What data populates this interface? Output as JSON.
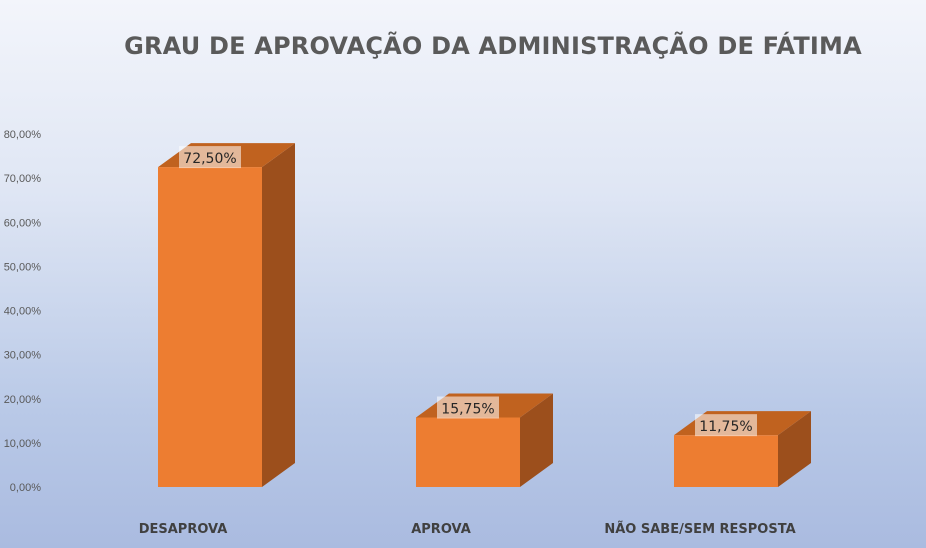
{
  "chart_data": {
    "type": "bar",
    "title": "GRAU DE APROVAÇÃO DA ADMINISTRAÇÃO DE FÁTIMA",
    "categories": [
      "DESAPROVA",
      "APROVA",
      "NÃO SABE/SEM RESPOSTA"
    ],
    "values": [
      72.5,
      15.75,
      11.75
    ],
    "data_labels": [
      "72,50%",
      "15,75%",
      "11,75%"
    ],
    "ytick_labels": [
      "0,00%",
      "10,00%",
      "20,00%",
      "30,00%",
      "40,00%",
      "50,00%",
      "60,00%",
      "70,00%",
      "80,00%"
    ],
    "ylim": [
      0,
      80
    ],
    "grid": false,
    "legend": "none",
    "style": "3d-column",
    "bar_color": "#ed7d31",
    "bar_side_color": "#9c4f1c",
    "bar_top_color": "#c0621f"
  }
}
